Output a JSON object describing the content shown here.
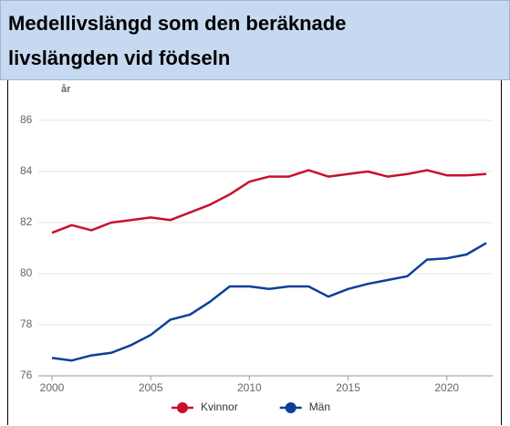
{
  "chart_data": {
    "type": "line",
    "title": "Medellivslängd som den beräknade livslängden vid födseln",
    "y_label": "år",
    "x": [
      2000,
      2001,
      2002,
      2003,
      2004,
      2005,
      2006,
      2007,
      2008,
      2009,
      2010,
      2011,
      2012,
      2013,
      2014,
      2015,
      2016,
      2017,
      2018,
      2019,
      2020,
      2021,
      2022
    ],
    "series": [
      {
        "name": "Kvinnor",
        "color": "#c8102e",
        "values": [
          81.6,
          81.9,
          81.7,
          82.0,
          82.1,
          82.2,
          82.1,
          82.4,
          82.7,
          83.1,
          83.6,
          83.8,
          83.8,
          84.05,
          83.8,
          83.9,
          84.0,
          83.8,
          83.9,
          84.05,
          83.85,
          83.85,
          83.9
        ]
      },
      {
        "name": "Män",
        "color": "#0c3f99",
        "values": [
          76.7,
          76.6,
          76.8,
          76.9,
          77.2,
          77.6,
          78.2,
          78.4,
          78.9,
          79.5,
          79.5,
          79.4,
          79.5,
          79.5,
          79.1,
          79.4,
          79.6,
          79.75,
          79.9,
          80.55,
          80.6,
          80.75,
          81.2
        ]
      }
    ],
    "xlim": [
      2000,
      2022
    ],
    "xticks": [
      2000,
      2005,
      2010,
      2015,
      2020
    ],
    "ylim": [
      76,
      86
    ],
    "yticks": [
      76,
      78,
      80,
      82,
      84,
      86
    ],
    "grid": true,
    "legend": "bottom"
  }
}
